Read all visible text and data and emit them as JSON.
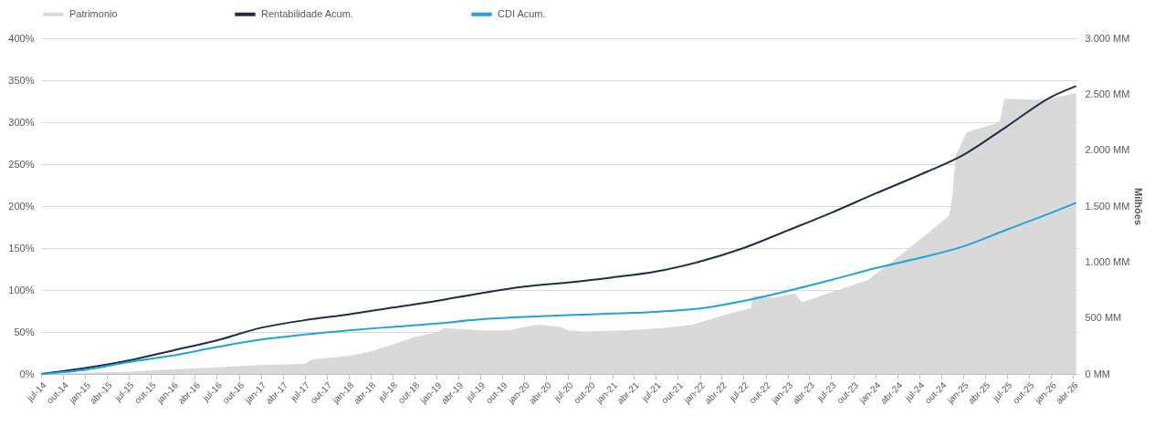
{
  "chart_data": {
    "type": "line",
    "y2label": "Milhões",
    "x": [
      "2014-07",
      "2015-01",
      "2015-07",
      "2016-01",
      "2016-07",
      "2017-01",
      "2017-07",
      "2018-01",
      "2018-07",
      "2019-01",
      "2019-07",
      "2020-01",
      "2020-07",
      "2021-01",
      "2021-07",
      "2022-01",
      "2022-07",
      "2023-01",
      "2023-07",
      "2024-01",
      "2024-07",
      "2025-01",
      "2025-07",
      "2026-01",
      "2026-04-15"
    ],
    "series": [
      {
        "name": "Patrimonio",
        "type": "area",
        "axis": "y2",
        "color": "#d9d9d9",
        "x": [
          "2014-07",
          "2015-01",
          "2015-07",
          "2016-01",
          "2016-07",
          "2017-01",
          "2017-07",
          "2017-08",
          "2018-01",
          "2018-04",
          "2018-07",
          "2018-10",
          "2019-01",
          "2019-02",
          "2019-07",
          "2019-11",
          "2020-01",
          "2020-03",
          "2020-06",
          "2020-07",
          "2020-09",
          "2021-03",
          "2021-08",
          "2021-12",
          "2022-04",
          "2022-08",
          "2022-08-10",
          "2022-11",
          "2023-02",
          "2023-03",
          "2023-07",
          "2023-12",
          "2024-04",
          "2024-08",
          "2024-11",
          "2024-11-15",
          "2024-12",
          "2025-01-15",
          "2025-05",
          "2025-06",
          "2025-06-20",
          "2025-11",
          "2026-01-15",
          "2026-04-15"
        ],
        "values": [
          0,
          10,
          20,
          40,
          60,
          80,
          90,
          130,
          160,
          200,
          260,
          330,
          370,
          410,
          390,
          390,
          420,
          440,
          420,
          390,
          380,
          390,
          410,
          440,
          520,
          590,
          700,
          680,
          720,
          640,
          730,
          840,
          1040,
          1250,
          1410,
          1570,
          1960,
          2160,
          2230,
          2250,
          2460,
          2450,
          2470,
          2510
        ]
      },
      {
        "name": "Rentabilidade Acum.",
        "color": "#1f2d4d",
        "values": [
          0,
          7,
          16,
          28,
          40,
          55,
          64,
          71,
          79,
          87,
          96,
          104,
          109,
          115,
          122,
          134,
          150,
          171,
          192,
          215,
          237,
          261,
          295,
          330,
          343
        ]
      },
      {
        "name": "CDI Acum.",
        "color": "#1ea3dc",
        "values": [
          0,
          5,
          14,
          22,
          32,
          41,
          47,
          52,
          56,
          60,
          65,
          68,
          70,
          72,
          74,
          78,
          87,
          99,
          112,
          126,
          138,
          152,
          172,
          192,
          204
        ]
      }
    ],
    "xlim": [
      "2014-07-01",
      "2026-04-20"
    ],
    "xticks": [
      {
        "value": "2014-07",
        "label": "jul-14"
      },
      {
        "value": "2014-10",
        "label": "out-14"
      },
      {
        "value": "2015-01",
        "label": "jan-15"
      },
      {
        "value": "2015-04",
        "label": "abr-15"
      },
      {
        "value": "2015-07",
        "label": "jul-15"
      },
      {
        "value": "2015-10",
        "label": "out-15"
      },
      {
        "value": "2016-01",
        "label": "jan-16"
      },
      {
        "value": "2016-04",
        "label": "abr-16"
      },
      {
        "value": "2016-07",
        "label": "jul-16"
      },
      {
        "value": "2016-10",
        "label": "out-16"
      },
      {
        "value": "2017-01",
        "label": "jan-17"
      },
      {
        "value": "2017-04",
        "label": "abr-17"
      },
      {
        "value": "2017-07",
        "label": "jul-17"
      },
      {
        "value": "2017-10",
        "label": "out-17"
      },
      {
        "value": "2018-01",
        "label": "jan-18"
      },
      {
        "value": "2018-04",
        "label": "abr-18"
      },
      {
        "value": "2018-07",
        "label": "jul-18"
      },
      {
        "value": "2018-10",
        "label": "out-18"
      },
      {
        "value": "2019-01",
        "label": "jan-19"
      },
      {
        "value": "2019-04",
        "label": "abr-19"
      },
      {
        "value": "2019-07",
        "label": "jul-19"
      },
      {
        "value": "2019-10",
        "label": "out-19"
      },
      {
        "value": "2020-01",
        "label": "jan-20"
      },
      {
        "value": "2020-04",
        "label": "abr-20"
      },
      {
        "value": "2020-07",
        "label": "jul-20"
      },
      {
        "value": "2020-10",
        "label": "out-20"
      },
      {
        "value": "2021-01",
        "label": "jan-21"
      },
      {
        "value": "2021-04",
        "label": "abr-21"
      },
      {
        "value": "2021-07",
        "label": "jul-21"
      },
      {
        "value": "2021-10",
        "label": "out-21"
      },
      {
        "value": "2022-01",
        "label": "jan-22"
      },
      {
        "value": "2022-04",
        "label": "abr-22"
      },
      {
        "value": "2022-07",
        "label": "jul-22"
      },
      {
        "value": "2022-10",
        "label": "out-22"
      },
      {
        "value": "2023-01",
        "label": "jan-23"
      },
      {
        "value": "2023-04",
        "label": "abr-23"
      },
      {
        "value": "2023-07",
        "label": "jul-23"
      },
      {
        "value": "2023-10",
        "label": "out-23"
      },
      {
        "value": "2024-01",
        "label": "jan-24"
      },
      {
        "value": "2024-04",
        "label": "abr-24"
      },
      {
        "value": "2024-07",
        "label": "jul-24"
      },
      {
        "value": "2024-10",
        "label": "out-24"
      },
      {
        "value": "2025-01",
        "label": "jan-25"
      },
      {
        "value": "2025-04",
        "label": "abr-25"
      },
      {
        "value": "2025-07",
        "label": "jul-25"
      },
      {
        "value": "2025-10",
        "label": "out-25"
      },
      {
        "value": "2026-01",
        "label": "jan-26"
      },
      {
        "value": "2026-04",
        "label": "abr-26"
      }
    ],
    "ylim": [
      0,
      400
    ],
    "yticks": [
      {
        "value": 0,
        "label": "0%"
      },
      {
        "value": 50,
        "label": "50%"
      },
      {
        "value": 100,
        "label": "100%"
      },
      {
        "value": 150,
        "label": "150%"
      },
      {
        "value": 200,
        "label": "200%"
      },
      {
        "value": 250,
        "label": "250%"
      },
      {
        "value": 300,
        "label": "300%"
      },
      {
        "value": 350,
        "label": "350%"
      },
      {
        "value": 400,
        "label": "400%"
      }
    ],
    "y2lim": [
      0,
      3000
    ],
    "y2ticks": [
      {
        "value": 0,
        "label": "0 MM"
      },
      {
        "value": 500,
        "label": "500 MM"
      },
      {
        "value": 1000,
        "label": "1.000 MM"
      },
      {
        "value": 1500,
        "label": "1.500 MM"
      },
      {
        "value": 2000,
        "label": "2.000 MM"
      },
      {
        "value": 2500,
        "label": "2.500 MM"
      },
      {
        "value": 3000,
        "label": "3.000 MM"
      }
    ],
    "grid": "y",
    "legend": "top"
  }
}
